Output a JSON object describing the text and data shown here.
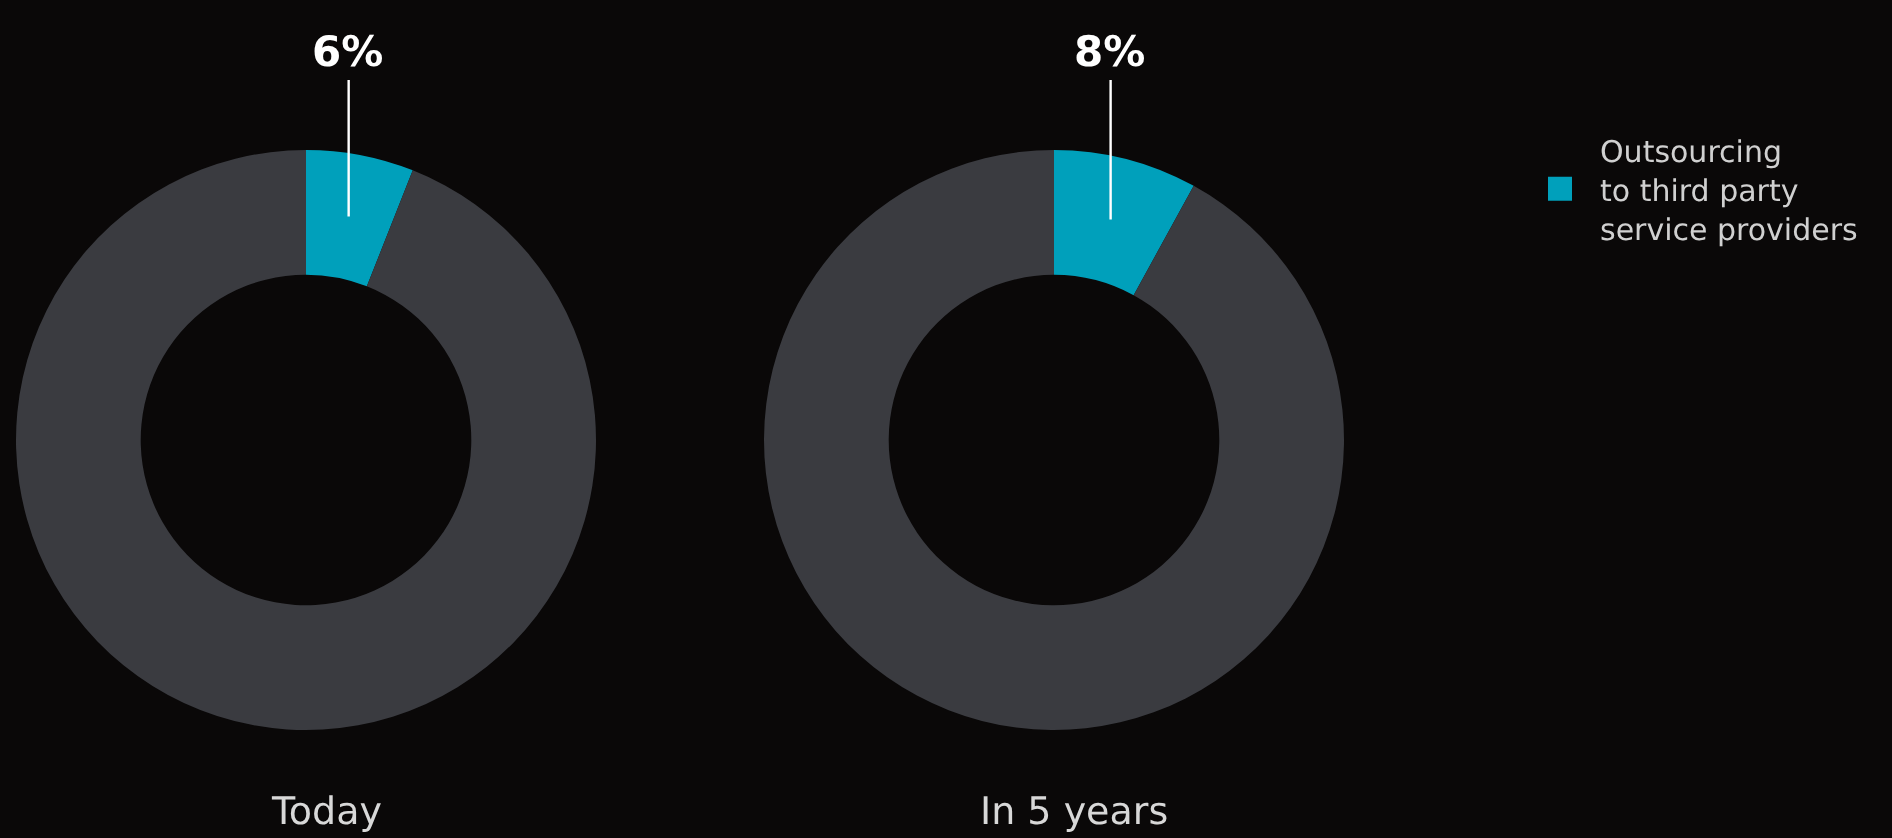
{
  "chart_data": [
    {
      "type": "donut",
      "title": "Today",
      "categories": [
        "Outsourcing\nto third party\nservice providers",
        null
      ],
      "values": [
        6,
        94
      ],
      "colors": [
        "#00a0bb",
        "#3a3b40"
      ],
      "value_labels": [
        "6%",
        null
      ],
      "legend": "right"
    },
    {
      "type": "donut",
      "title": "In 5 years",
      "categories": [
        null,
        null
      ],
      "values": [
        8,
        92
      ],
      "colors": [
        "#00a0bb",
        "#3a3b40"
      ],
      "value_labels": [
        "8%",
        null
      ]
    }
  ]
}
